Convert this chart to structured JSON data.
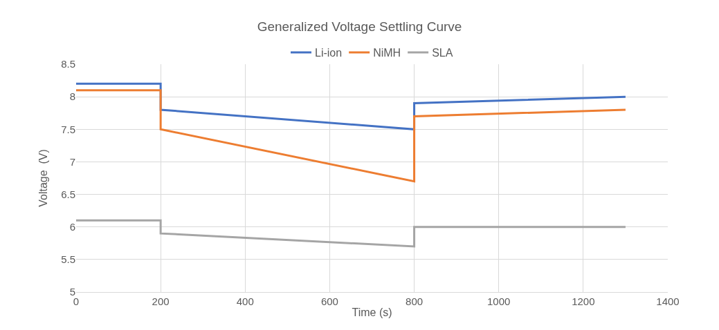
{
  "chart_data": {
    "type": "line",
    "title": "Generalized Voltage Settling Curve",
    "xlabel": "Time (s)",
    "ylabel": "Voltage  (V)",
    "series": [
      {
        "name": "Li-ion",
        "color": "#4472c4",
        "x": [
          0,
          200,
          200,
          800,
          800,
          1300
        ],
        "values": [
          8.2,
          8.2,
          7.8,
          7.5,
          7.9,
          8.0
        ]
      },
      {
        "name": "NiMH",
        "color": "#ed7d31",
        "x": [
          0,
          200,
          200,
          800,
          800,
          1300
        ],
        "values": [
          8.1,
          8.1,
          7.5,
          6.7,
          7.7,
          7.8
        ]
      },
      {
        "name": "SLA",
        "color": "#a5a5a5",
        "x": [
          0,
          200,
          200,
          800,
          800,
          1300
        ],
        "values": [
          6.1,
          6.1,
          5.9,
          5.7,
          6.0,
          6.0
        ]
      }
    ],
    "xlim": [
      0,
      1400
    ],
    "xticks": [
      0,
      200,
      400,
      600,
      800,
      1000,
      1200,
      1400
    ],
    "ylim": [
      5,
      8.5
    ],
    "yticks": [
      5,
      5.5,
      6,
      6.5,
      7,
      7.5,
      8,
      8.5
    ],
    "grid": true,
    "legend": "top",
    "marker": "none",
    "line_style": "solid"
  }
}
